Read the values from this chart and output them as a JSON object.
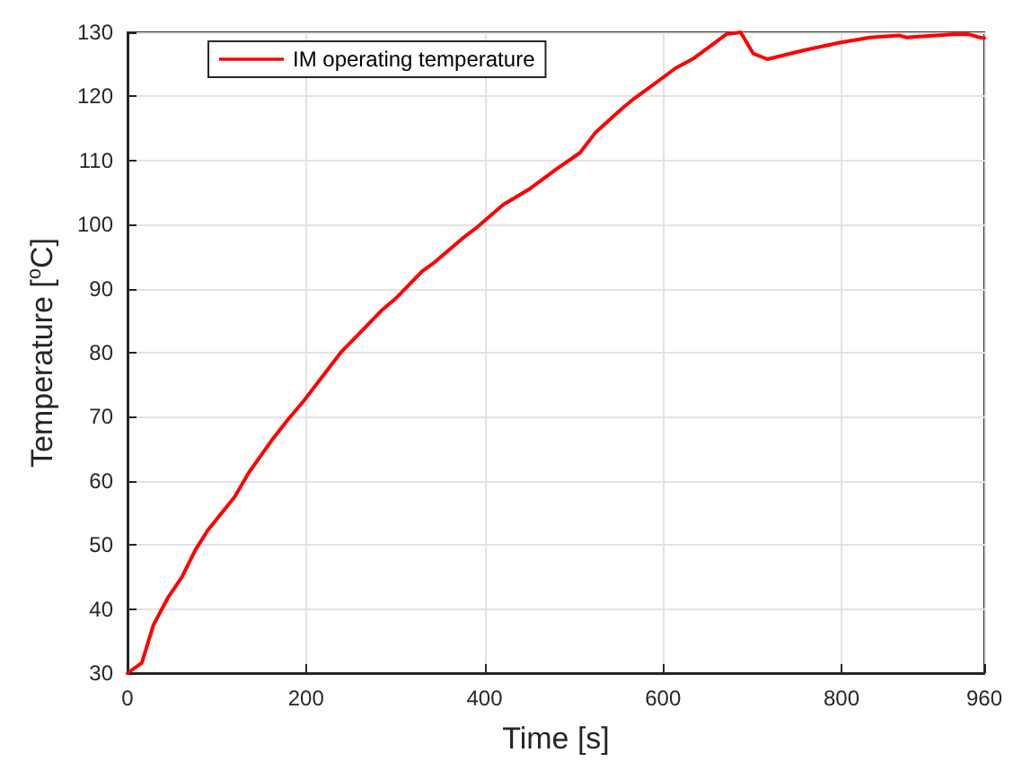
{
  "chart_data": {
    "type": "line",
    "xlabel": "Time [s]",
    "ylabel": "Temperature [$^{o}$C]",
    "x": [
      0,
      16,
      29,
      45,
      61,
      76,
      90,
      120,
      136,
      163,
      180,
      197,
      240,
      257,
      284,
      300,
      330,
      344,
      375,
      391,
      421,
      451,
      481,
      507,
      524,
      554,
      568,
      584,
      614,
      634,
      671,
      687,
      701,
      717,
      758,
      798,
      832,
      865,
      873,
      925,
      942,
      955,
      960
    ],
    "series": [
      {
        "name": "IM operating temperature",
        "color": "#ff0000",
        "values": [
          30,
          31.6,
          37.5,
          41.7,
          45,
          49.2,
          52.3,
          57.5,
          61.3,
          66.6,
          69.6,
          72.4,
          80.2,
          82.6,
          86.5,
          88.4,
          92.7,
          94.1,
          97.8,
          99.5,
          103.1,
          105.6,
          108.7,
          111.2,
          114.3,
          118.1,
          119.7,
          121.3,
          124.4,
          125.9,
          129.7,
          130,
          126.7,
          125.8,
          127.2,
          128.4,
          129.2,
          129.5,
          129.2,
          129.7,
          129.7,
          129.2,
          129.1
        ]
      }
    ],
    "xlim": [
      0,
      960
    ],
    "xticks": [
      0,
      200,
      400,
      600,
      800,
      960
    ],
    "ylim": [
      30,
      130
    ],
    "yticks": [
      30,
      40,
      50,
      60,
      70,
      80,
      90,
      100,
      110,
      120,
      130
    ],
    "grid": true,
    "legend": "top left",
    "line_style": "solid",
    "marker": "none"
  }
}
